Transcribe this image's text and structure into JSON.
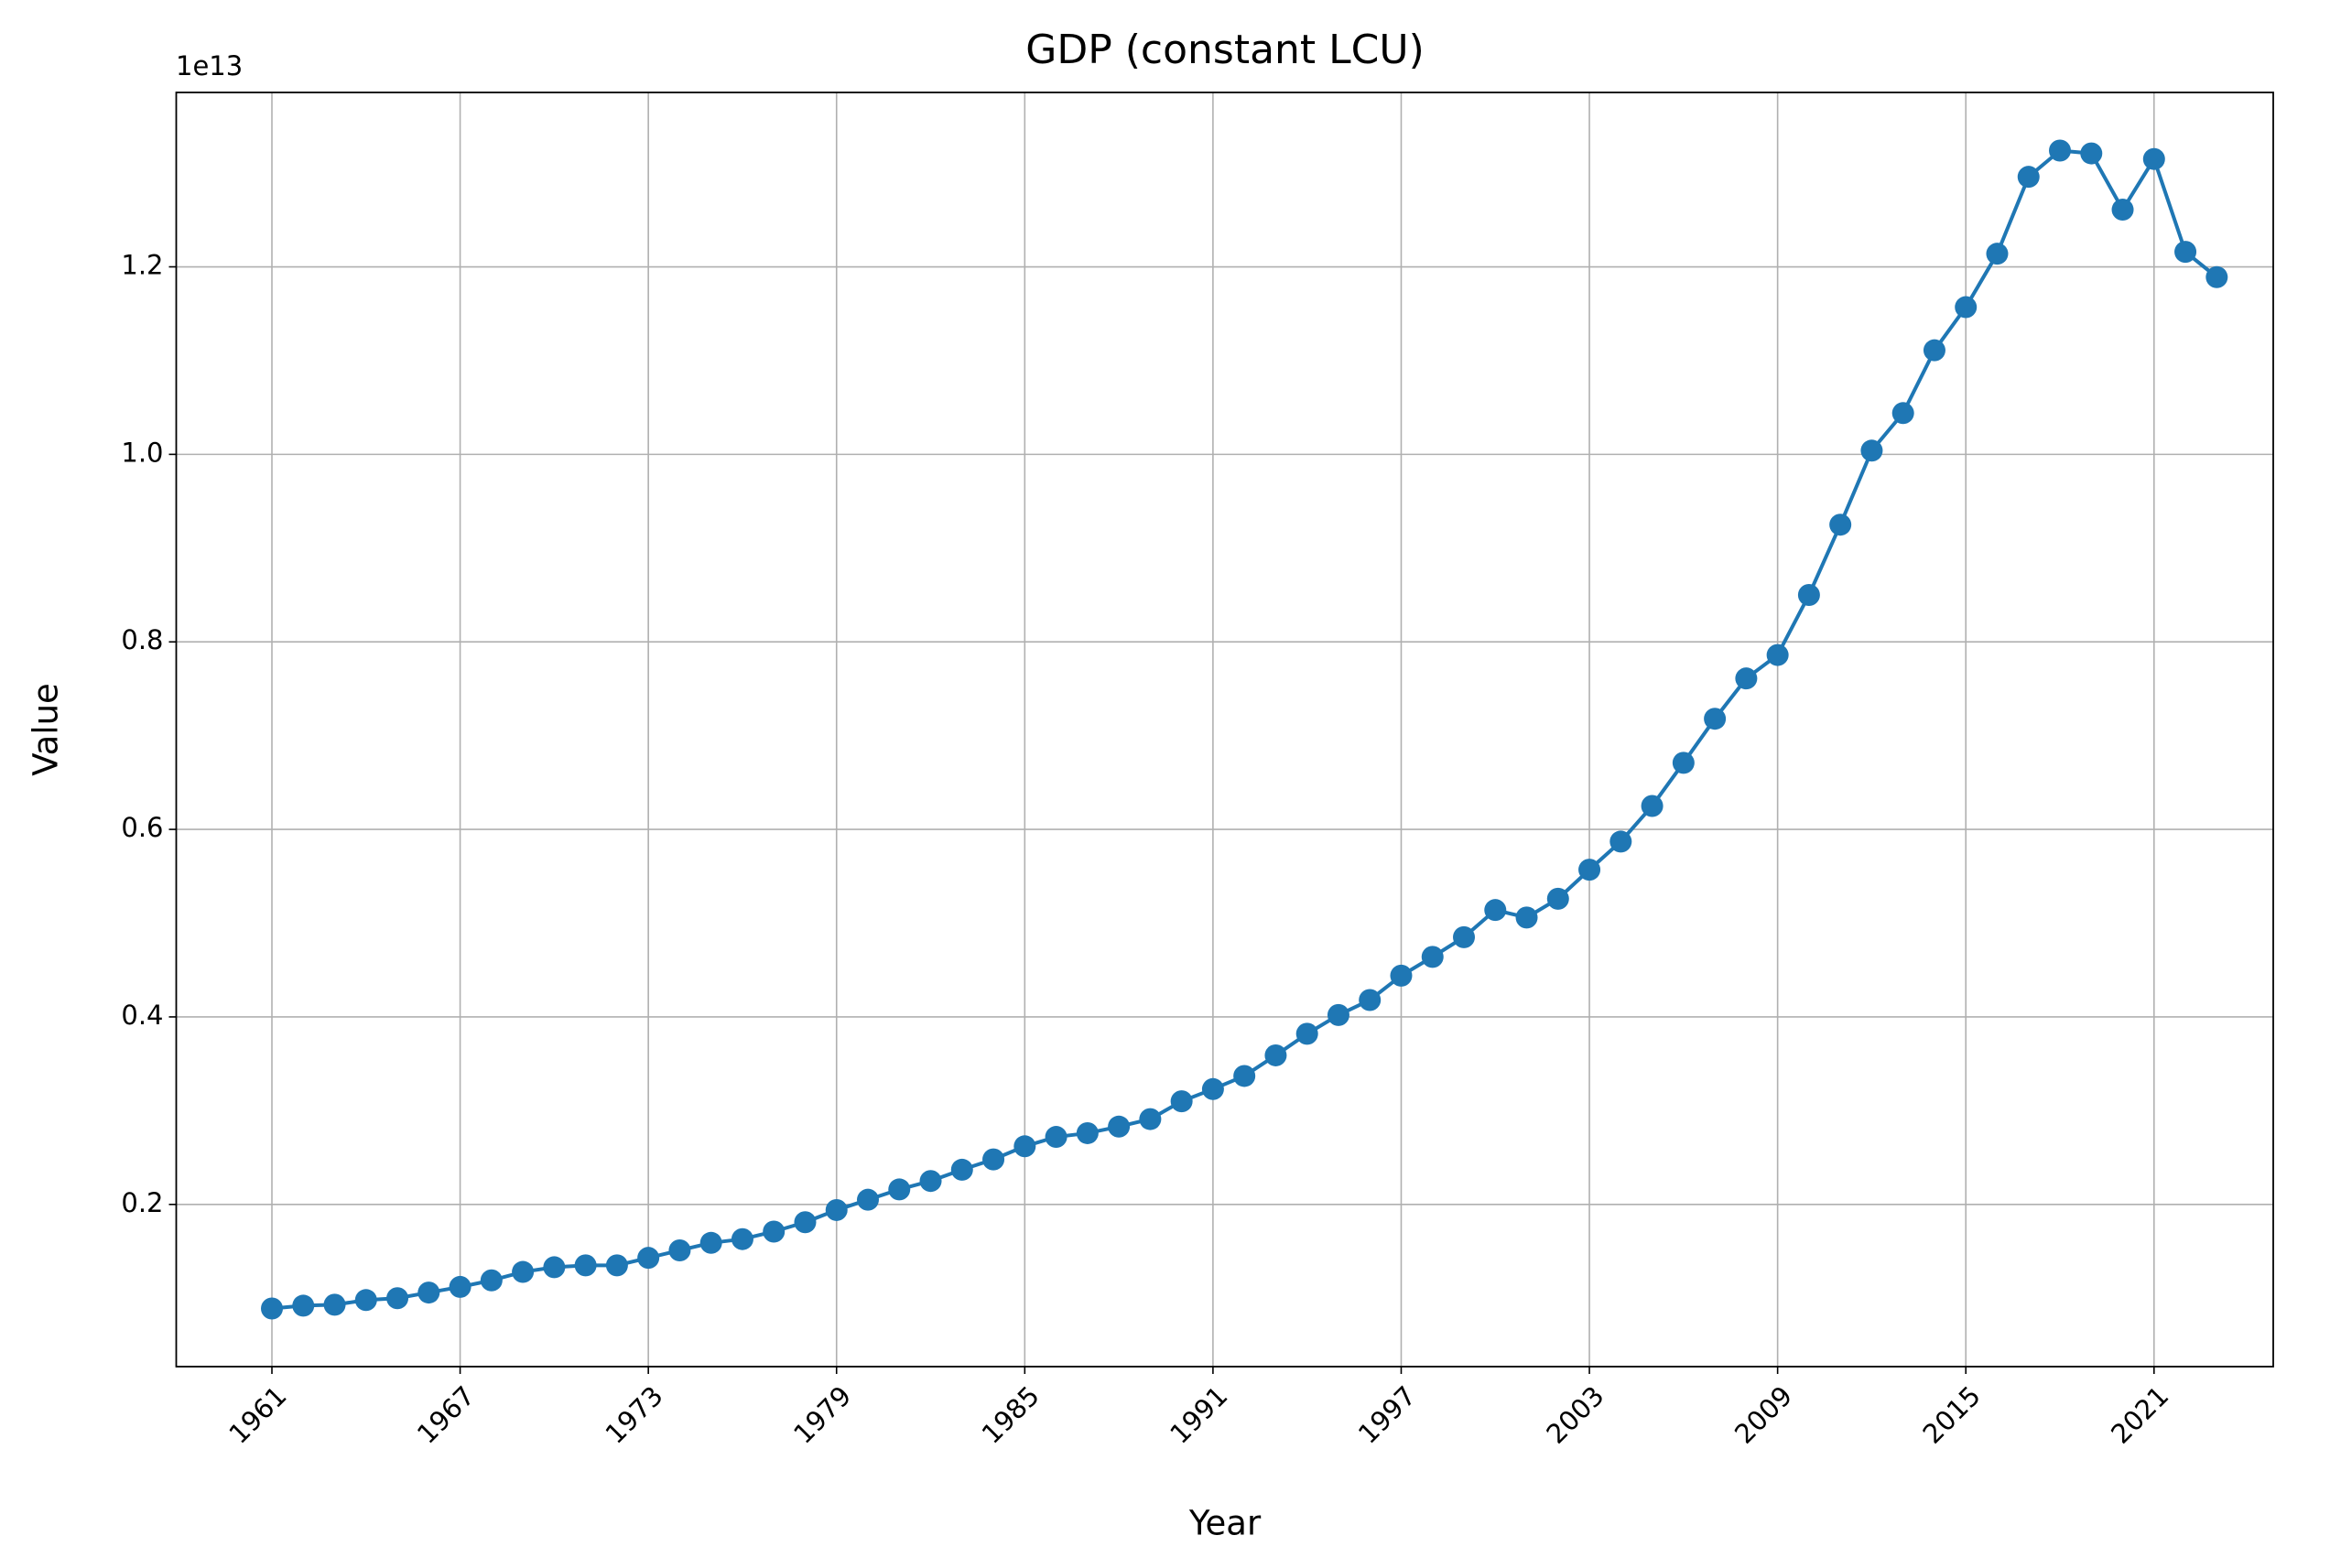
{
  "chart_data": {
    "type": "line",
    "title": "GDP (constant LCU)",
    "x_label": "Year",
    "y_label": "Value",
    "y_offset_label": "1e13",
    "x": [
      1961,
      1962,
      1963,
      1964,
      1965,
      1966,
      1967,
      1968,
      1969,
      1970,
      1971,
      1972,
      1973,
      1974,
      1975,
      1976,
      1977,
      1978,
      1979,
      1980,
      1981,
      1982,
      1983,
      1984,
      1985,
      1986,
      1987,
      1988,
      1989,
      1990,
      1991,
      1992,
      1993,
      1994,
      1995,
      1996,
      1997,
      1998,
      1999,
      2000,
      2001,
      2002,
      2003,
      2004,
      2005,
      2006,
      2007,
      2008,
      2009,
      2010,
      2011,
      2012,
      2013,
      2014,
      2015,
      2016,
      2017,
      2018,
      2019,
      2020,
      2021,
      2022,
      2023
    ],
    "series": [
      {
        "name": "GDP (constant LCU)",
        "color": "#1f77b4",
        "values": [
          0.089,
          0.092,
          0.093,
          0.098,
          0.1,
          0.106,
          0.112,
          0.119,
          0.128,
          0.133,
          0.135,
          0.135,
          0.143,
          0.151,
          0.159,
          0.163,
          0.171,
          0.181,
          0.194,
          0.205,
          0.216,
          0.225,
          0.237,
          0.248,
          0.262,
          0.272,
          0.276,
          0.283,
          0.291,
          0.31,
          0.323,
          0.337,
          0.359,
          0.382,
          0.402,
          0.418,
          0.444,
          0.464,
          0.485,
          0.514,
          0.506,
          0.526,
          0.557,
          0.587,
          0.625,
          0.671,
          0.718,
          0.761,
          0.786,
          0.85,
          0.925,
          1.004,
          1.044,
          1.111,
          1.157,
          1.214,
          1.296,
          1.324,
          1.321,
          1.261,
          1.315,
          1.216,
          1.189
        ]
      }
    ],
    "xlim": [
      1957.95,
      2024.8
    ],
    "xticks": [
      1961,
      1967,
      1973,
      1979,
      1985,
      1991,
      1997,
      2003,
      2009,
      2015,
      2021
    ],
    "ylim": [
      0.027,
      1.386
    ],
    "yticks": [
      0.2,
      0.4,
      0.6,
      0.8,
      {
        "value": 1.0,
        "label": "1.0"
      },
      1.2
    ],
    "grid": true
  }
}
